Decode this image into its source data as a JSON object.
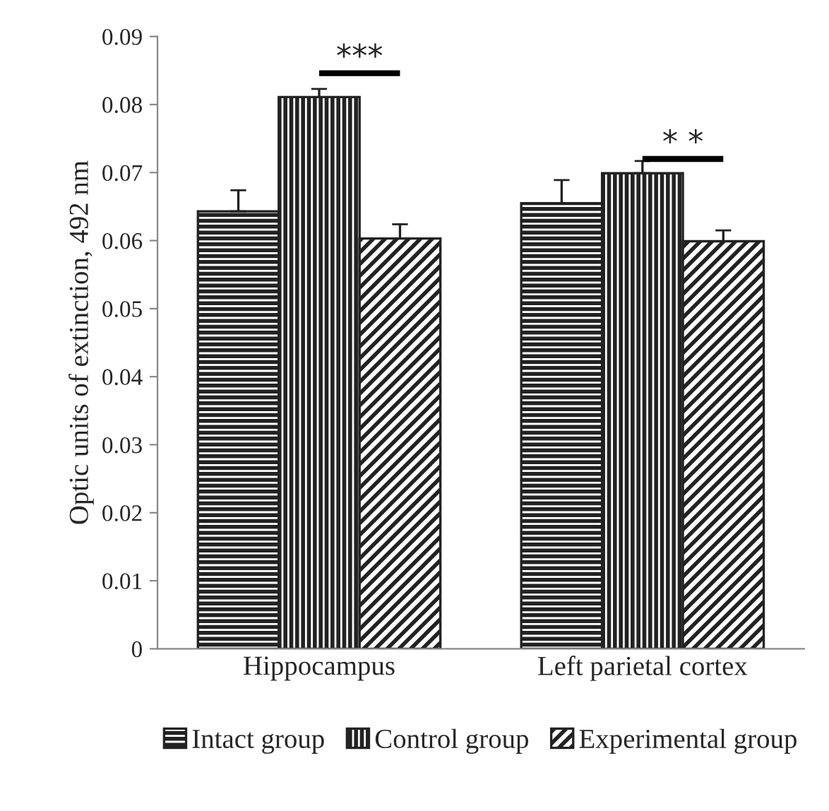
{
  "chart_data": {
    "type": "bar",
    "ylabel": "Optic units of extinction, 492 nm",
    "categories": [
      "Hippocampus",
      "Left parietal cortex"
    ],
    "series": [
      {
        "name": "Intact group",
        "color": "#222222",
        "values": [
          0.0643,
          0.0655
        ],
        "errors": [
          [
            0.0643,
            0.0674
          ],
          [
            0.0655,
            0.0689
          ]
        ]
      },
      {
        "name": "Control group",
        "color": "#222222",
        "values": [
          0.0811,
          0.0699
        ],
        "errors": [
          [
            0.0811,
            0.0823
          ],
          [
            0.0699,
            0.0717
          ]
        ]
      },
      {
        "name": "Experimental group",
        "color": "#222222",
        "values": [
          0.0603,
          0.0599
        ],
        "errors": [
          [
            0.0603,
            0.0624
          ],
          [
            0.0599,
            0.0615
          ]
        ]
      }
    ],
    "annotations": [
      "***",
      "* *"
    ],
    "ylim": [
      0,
      0.09
    ],
    "yticks": [
      0,
      0.01,
      0.02,
      0.03,
      0.04,
      0.05,
      0.06,
      0.07,
      0.08,
      0.09
    ],
    "grid": false,
    "legend": "bottom"
  }
}
